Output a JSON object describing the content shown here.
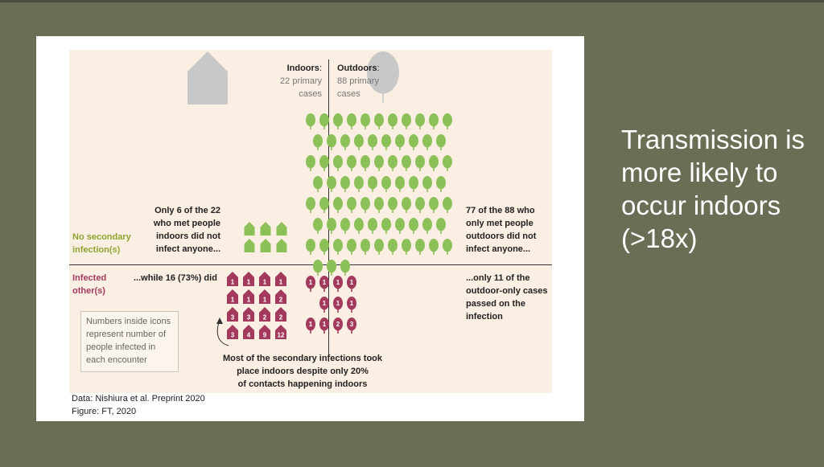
{
  "slide": {
    "side_text": "Transmission is more likely to occur indoors (>18x)"
  },
  "figure": {
    "indoors_title": "Indoors",
    "indoors_colon": ":",
    "indoors_sub1": "22 primary",
    "indoors_sub2": "cases",
    "outdoors_title": "Outdoors",
    "outdoors_colon": ":",
    "outdoors_sub1": "88 primary",
    "outdoors_sub2": "cases",
    "row_no_secondary_1": "No secondary",
    "row_no_secondary_2": "infection(s)",
    "row_infected_1": "Infected",
    "row_infected_2": "other(s)",
    "indoor_none_text": [
      "Only 6 of the 22",
      "who met people",
      "indoors did not",
      "infect anyone..."
    ],
    "outdoor_none_text": [
      "77 of the 88 who",
      "only met people",
      "outdoors did not",
      "infect anyone..."
    ],
    "indoor_infected_text": "...while 16 (73%) did",
    "outdoor_infected_text": [
      "...only 11 of the",
      "outdoor-only cases",
      "passed on the",
      "infection"
    ],
    "legend_text": [
      "Numbers inside icons",
      "represent number of",
      "people infected in",
      "each encounter"
    ],
    "legend_icon_number": "1",
    "annotation": [
      "Most of the secondary infections took",
      "place indoors despite only 20%",
      "of contacts happening indoors"
    ],
    "source_line1": "Data: Nishiura  et al. Preprint  2020",
    "source_line2": "Figure: FT, 2020"
  },
  "chart_data": {
    "type": "pictogram",
    "columns": [
      "Indoors",
      "Outdoors"
    ],
    "rows": [
      "No secondary infection(s)",
      "Infected other(s)"
    ],
    "primary_cases": {
      "Indoors": 22,
      "Outdoors": 88
    },
    "no_secondary": {
      "Indoors": 6,
      "Outdoors": 77
    },
    "infected_others": {
      "Indoors": 16,
      "Outdoors": 11
    },
    "indoor_infected_counts": [
      1,
      1,
      1,
      1,
      1,
      1,
      1,
      2,
      3,
      3,
      2,
      2,
      3,
      4,
      9,
      12
    ],
    "outdoor_infected_counts": [
      1,
      1,
      1,
      1,
      1,
      1,
      1,
      1,
      1,
      2,
      3
    ],
    "colors": {
      "house": "#a33a5e",
      "tree_infected": "#a33a5e",
      "house_no_infection": "#8cc15a",
      "tree_no_infection": "#8cc15a",
      "header_icon": "#c8c8c8",
      "panel_background": "#fbeee2",
      "slide_background": "#6a6e55"
    },
    "icons": {
      "indoors": "house-icon",
      "outdoors": "tree-icon"
    }
  }
}
